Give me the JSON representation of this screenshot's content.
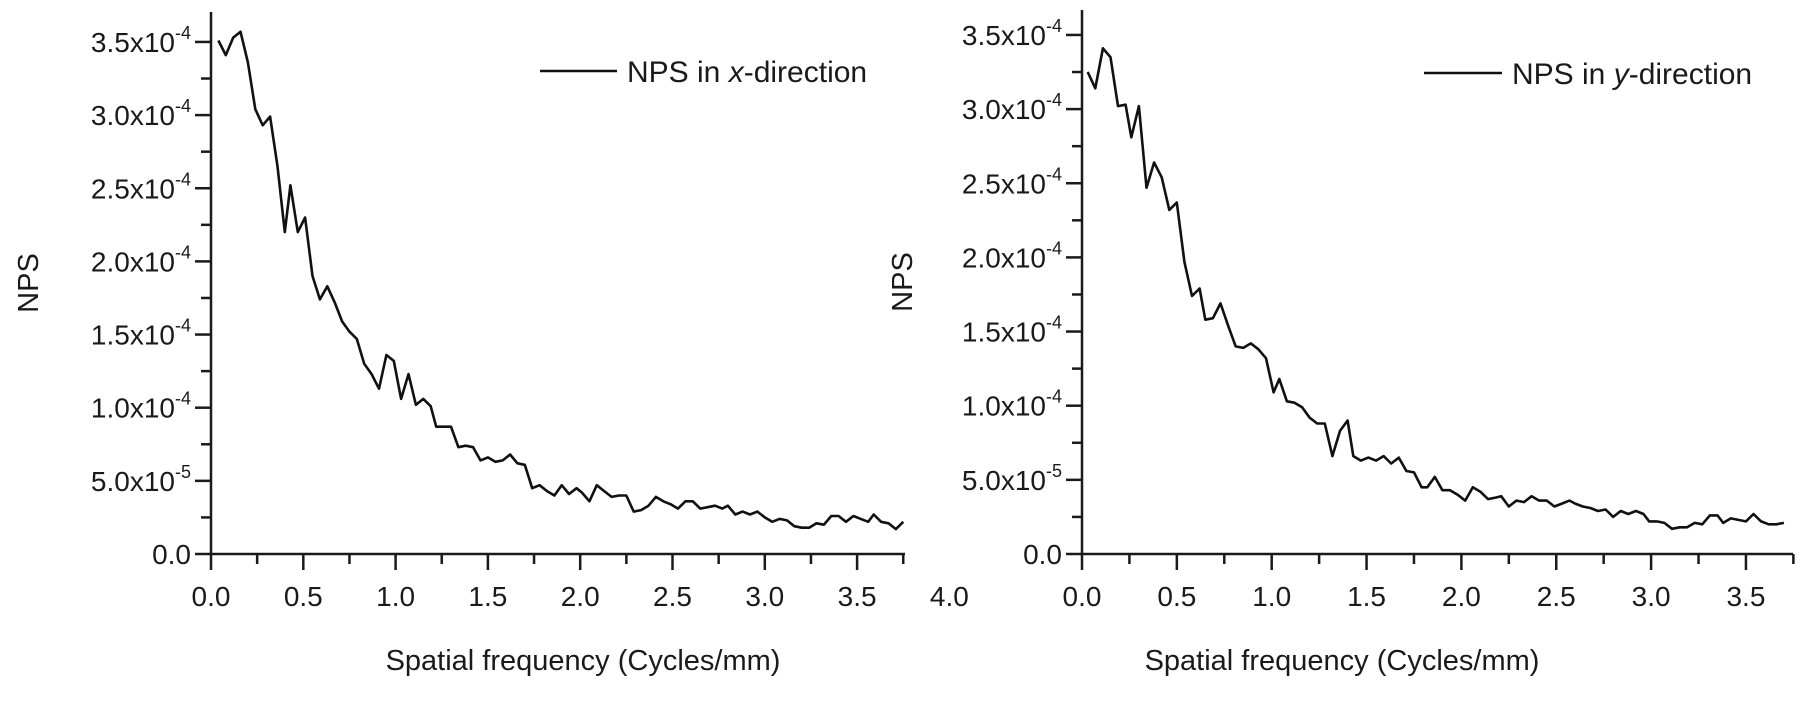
{
  "chart_data": [
    {
      "type": "line",
      "xlabel": "Spatial frequency (Cycles/mm)",
      "ylabel": "NPS",
      "xlim": [
        0,
        3.75
      ],
      "ylim": [
        0,
        0.00036
      ],
      "x_ticks": [
        "0.0",
        "0.5",
        "1.0",
        "1.5",
        "2.0",
        "2.5",
        "3.0",
        "3.5",
        "4.0"
      ],
      "y_ticks": [
        {
          "mantissa": "0.0",
          "exponent": ""
        },
        {
          "mantissa": "5.0x10",
          "exponent": "-5"
        },
        {
          "mantissa": "1.0x10",
          "exponent": "-4"
        },
        {
          "mantissa": "1.5x10",
          "exponent": "-4"
        },
        {
          "mantissa": "2.0x10",
          "exponent": "-4"
        },
        {
          "mantissa": "2.5x10",
          "exponent": "-4"
        },
        {
          "mantissa": "3.0x10",
          "exponent": "-4"
        },
        {
          "mantissa": "3.5x10",
          "exponent": "-4"
        }
      ],
      "grid": false,
      "legend_position": "top-right",
      "legend": {
        "prefix": "NPS in ",
        "var": "x",
        "suffix": "-direction"
      },
      "series": [
        {
          "color": "#111111",
          "x": [
            0.04,
            0.08,
            0.12,
            0.16,
            0.2,
            0.24,
            0.28,
            0.32,
            0.36,
            0.4,
            0.43,
            0.47,
            0.51,
            0.55,
            0.59,
            0.63,
            0.67,
            0.71,
            0.75,
            0.79,
            0.83,
            0.87,
            0.91,
            0.95,
            0.99,
            1.03,
            1.07,
            1.11,
            1.15,
            1.19,
            1.22,
            1.26,
            1.3,
            1.34,
            1.38,
            1.42,
            1.46,
            1.5,
            1.54,
            1.58,
            1.62,
            1.66,
            1.7,
            1.74,
            1.78,
            1.82,
            1.86,
            1.9,
            1.94,
            1.98,
            2.01,
            2.05,
            2.09,
            2.13,
            2.17,
            2.21,
            2.25,
            2.29,
            2.33,
            2.37,
            2.41,
            2.45,
            2.49,
            2.53,
            2.57,
            2.61,
            2.65,
            2.69,
            2.73,
            2.77,
            2.8,
            2.84,
            2.88,
            2.92,
            2.96,
            3.0,
            3.04,
            3.08,
            3.12,
            3.16,
            3.2,
            3.24,
            3.28,
            3.32,
            3.36,
            3.4,
            3.44,
            3.48,
            3.52,
            3.56,
            3.59,
            3.63,
            3.67,
            3.71,
            3.75
          ],
          "y": [
            0.000351,
            0.000341,
            0.000353,
            0.000357,
            0.000336,
            0.000304,
            0.000293,
            0.000299,
            0.000265,
            0.00022,
            0.000252,
            0.00022,
            0.00023,
            0.00019,
            0.000174,
            0.000183,
            0.000172,
            0.000159,
            0.000152,
            0.000147,
            0.00013,
            0.000123,
            0.000113,
            0.000136,
            0.000132,
            0.000106,
            0.000123,
            0.000102,
            0.000106,
            0.000101,
            8.7e-05,
            8.7e-05,
            8.7e-05,
            7.3e-05,
            7.4e-05,
            7.3e-05,
            6.4e-05,
            6.6e-05,
            6.3e-05,
            6.4e-05,
            6.8e-05,
            6.2e-05,
            6.1e-05,
            4.5e-05,
            4.7e-05,
            4.3e-05,
            4e-05,
            4.7e-05,
            4.1e-05,
            4.5e-05,
            4.2e-05,
            3.6e-05,
            4.7e-05,
            4.3e-05,
            3.9e-05,
            4e-05,
            4e-05,
            2.9e-05,
            3e-05,
            3.3e-05,
            3.9e-05,
            3.6e-05,
            3.4e-05,
            3.1e-05,
            3.6e-05,
            3.6e-05,
            3.1e-05,
            3.2e-05,
            3.3e-05,
            3.1e-05,
            3.3e-05,
            2.7e-05,
            2.9e-05,
            2.7e-05,
            2.9e-05,
            2.5e-05,
            2.2e-05,
            2.4e-05,
            2.3e-05,
            1.9e-05,
            1.8e-05,
            1.8e-05,
            2.1e-05,
            2e-05,
            2.6e-05,
            2.6e-05,
            2.2e-05,
            2.6e-05,
            2.4e-05,
            2.2e-05,
            2.7e-05,
            2.2e-05,
            2.1e-05,
            1.7e-05,
            2.2e-05
          ]
        }
      ]
    },
    {
      "type": "line",
      "xlabel": "Spatial frequency (Cycles/mm)",
      "ylabel": "NPS",
      "xlim": [
        0,
        3.75
      ],
      "ylim": [
        0,
        0.000365
      ],
      "x_ticks": [
        "0.0",
        "0.5",
        "1.0",
        "1.5",
        "2.0",
        "2.5",
        "3.0",
        "3.5"
      ],
      "y_ticks": [
        {
          "mantissa": "0.0",
          "exponent": ""
        },
        {
          "mantissa": "5.0x10",
          "exponent": "-5"
        },
        {
          "mantissa": "1.0x10",
          "exponent": "-4"
        },
        {
          "mantissa": "1.5x10",
          "exponent": "-4"
        },
        {
          "mantissa": "2.0x10",
          "exponent": "-4"
        },
        {
          "mantissa": "2.5x10",
          "exponent": "-4"
        },
        {
          "mantissa": "3.0x10",
          "exponent": "-4"
        },
        {
          "mantissa": "3.5x10",
          "exponent": "-4"
        }
      ],
      "grid": false,
      "legend_position": "top-right",
      "legend": {
        "prefix": "NPS in ",
        "var": "y",
        "suffix": "-direction"
      },
      "series": [
        {
          "color": "#111111",
          "x": [
            0.03,
            0.07,
            0.11,
            0.15,
            0.19,
            0.23,
            0.26,
            0.3,
            0.34,
            0.38,
            0.42,
            0.46,
            0.5,
            0.54,
            0.58,
            0.62,
            0.65,
            0.69,
            0.73,
            0.77,
            0.81,
            0.85,
            0.89,
            0.93,
            0.97,
            1.01,
            1.04,
            1.08,
            1.12,
            1.16,
            1.2,
            1.24,
            1.28,
            1.32,
            1.36,
            1.4,
            1.43,
            1.47,
            1.51,
            1.55,
            1.59,
            1.63,
            1.67,
            1.71,
            1.75,
            1.79,
            1.82,
            1.86,
            1.9,
            1.94,
            1.98,
            2.02,
            2.06,
            2.1,
            2.14,
            2.18,
            2.21,
            2.25,
            2.29,
            2.33,
            2.37,
            2.41,
            2.45,
            2.49,
            2.53,
            2.57,
            2.6,
            2.64,
            2.68,
            2.72,
            2.76,
            2.8,
            2.84,
            2.88,
            2.92,
            2.96,
            2.99,
            3.03,
            3.07,
            3.11,
            3.15,
            3.19,
            3.23,
            3.27,
            3.31,
            3.35,
            3.38,
            3.42,
            3.46,
            3.5,
            3.54,
            3.58,
            3.62,
            3.66,
            3.7
          ],
          "y": [
            0.000325,
            0.000314,
            0.000341,
            0.000335,
            0.000302,
            0.000303,
            0.000281,
            0.000302,
            0.000247,
            0.000264,
            0.000254,
            0.000232,
            0.000237,
            0.000197,
            0.000174,
            0.000179,
            0.000158,
            0.000159,
            0.000169,
            0.000154,
            0.00014,
            0.000139,
            0.000142,
            0.000138,
            0.000132,
            0.000109,
            0.000118,
            0.000103,
            0.000102,
            9.9e-05,
            9.2e-05,
            8.8e-05,
            8.8e-05,
            6.6e-05,
            8.3e-05,
            9e-05,
            6.6e-05,
            6.3e-05,
            6.5e-05,
            6.3e-05,
            6.6e-05,
            6.1e-05,
            6.5e-05,
            5.6e-05,
            5.5e-05,
            4.5e-05,
            4.5e-05,
            5.2e-05,
            4.3e-05,
            4.3e-05,
            4e-05,
            3.6e-05,
            4.5e-05,
            4.2e-05,
            3.7e-05,
            3.8e-05,
            3.9e-05,
            3.2e-05,
            3.6e-05,
            3.5e-05,
            3.9e-05,
            3.6e-05,
            3.6e-05,
            3.2e-05,
            3.4e-05,
            3.6e-05,
            3.4e-05,
            3.2e-05,
            3.1e-05,
            2.9e-05,
            3e-05,
            2.5e-05,
            2.9e-05,
            2.7e-05,
            2.9e-05,
            2.7e-05,
            2.2e-05,
            2.2e-05,
            2.1e-05,
            1.7e-05,
            1.8e-05,
            1.8e-05,
            2.1e-05,
            2e-05,
            2.6e-05,
            2.6e-05,
            2.1e-05,
            2.4e-05,
            2.3e-05,
            2.2e-05,
            2.7e-05,
            2.2e-05,
            2e-05,
            2e-05,
            2.1e-05
          ]
        }
      ]
    }
  ]
}
